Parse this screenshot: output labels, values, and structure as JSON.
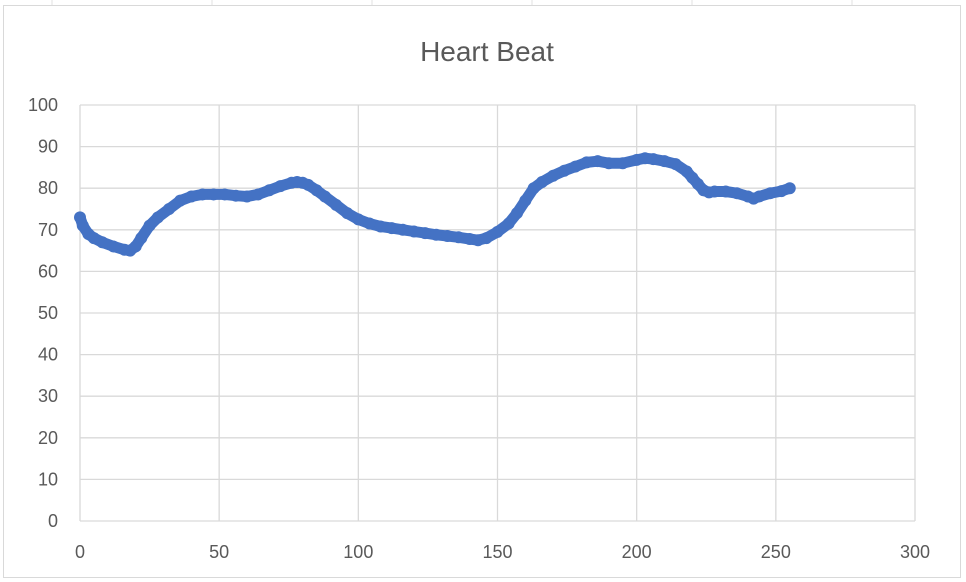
{
  "chart_data": {
    "type": "scatter",
    "title": "Heart Beat",
    "xlabel": "",
    "ylabel": "",
    "xlim": [
      0,
      300
    ],
    "ylim": [
      0,
      100
    ],
    "x_ticks": [
      0,
      50,
      100,
      150,
      200,
      250,
      300
    ],
    "y_ticks": [
      0,
      10,
      20,
      30,
      40,
      50,
      60,
      70,
      80,
      90,
      100
    ],
    "grid": true,
    "legend": "none",
    "series": [
      {
        "color": "#4472c4",
        "x": [
          0,
          1,
          3,
          5,
          8,
          12,
          16,
          18,
          20,
          22,
          25,
          28,
          32,
          36,
          40,
          44,
          48,
          52,
          56,
          60,
          64,
          68,
          72,
          76,
          78,
          80,
          82,
          85,
          88,
          92,
          96,
          100,
          104,
          108,
          112,
          116,
          120,
          124,
          128,
          132,
          136,
          140,
          143,
          146,
          150,
          154,
          157,
          160,
          163,
          166,
          170,
          174,
          178,
          182,
          186,
          190,
          195,
          200,
          203,
          206,
          210,
          214,
          218,
          220,
          222,
          224,
          226,
          228,
          232,
          236,
          240,
          242,
          244,
          248,
          252,
          255
        ],
        "y": [
          73,
          71,
          69,
          68,
          67,
          66,
          65.2,
          65,
          66,
          68,
          71,
          73,
          75,
          77,
          78,
          78.5,
          78.5,
          78.5,
          78.2,
          78,
          78.5,
          79.5,
          80.5,
          81.3,
          81.5,
          81.3,
          80.8,
          79.5,
          78,
          76,
          74,
          72.5,
          71.5,
          70.8,
          70.4,
          70,
          69.6,
          69.2,
          68.8,
          68.5,
          68.2,
          67.8,
          67.5,
          68,
          69.5,
          71.5,
          74,
          77,
          80,
          81.5,
          83,
          84.2,
          85.2,
          86.2,
          86.5,
          86,
          86,
          86.8,
          87.2,
          87,
          86.5,
          85.8,
          84,
          82.5,
          81,
          79.5,
          79,
          79.2,
          79.2,
          78.8,
          78,
          77.5,
          78,
          78.8,
          79.3,
          80
        ]
      }
    ]
  }
}
